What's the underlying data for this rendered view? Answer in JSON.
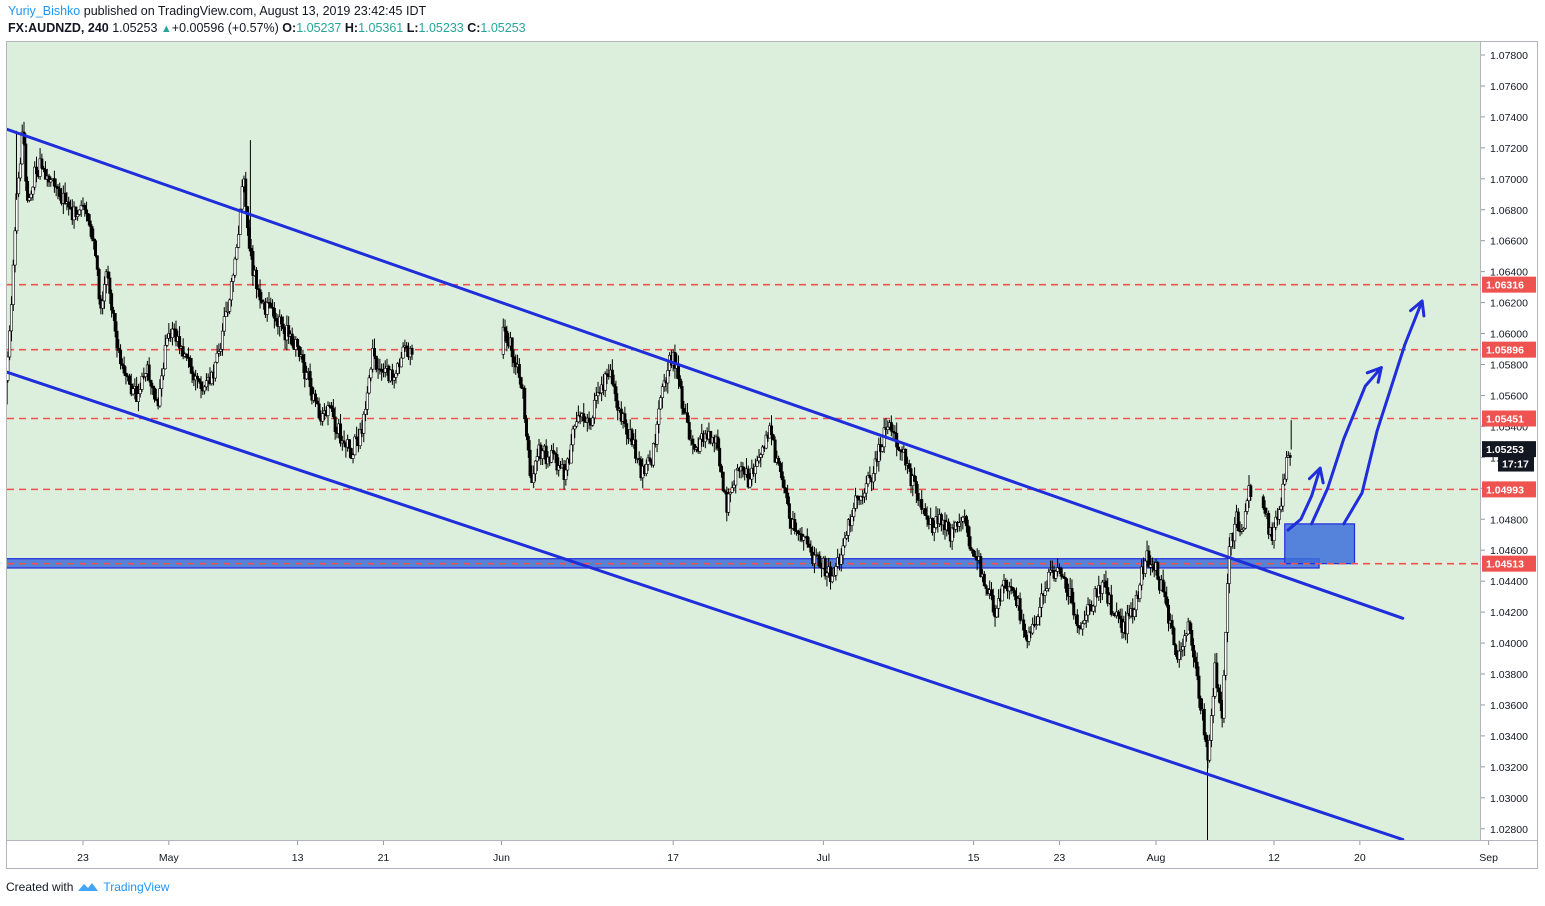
{
  "header": {
    "author": "Yuriy_Bishko",
    "published_text": "published on TradingView.com, August 13, 2019 23:42:45 IDT",
    "symbol": "FX:AUDNZD,",
    "interval": "240",
    "last": "1.05253",
    "change": "+0.00596 (+0.57%)",
    "o_label": "O:",
    "o_value": "1.05237",
    "h_label": "H:",
    "h_value": "1.05361",
    "l_label": "L:",
    "l_value": "1.05233",
    "c_label": "C:",
    "c_value": "1.05253"
  },
  "footer": {
    "created_with": "Created with",
    "brand": "TradingView"
  },
  "colors": {
    "background": "#dcefdc",
    "channel": "#1f2ddb",
    "level_dashed": "#ef5350",
    "zone_fill": "#3d6ed9",
    "price_tag_red": "#ef5350",
    "price_tag_dark": "#131722"
  },
  "chart_data": {
    "type": "candlestick",
    "symbol": "FX:AUDNZD",
    "timeframe": "240",
    "ylim": [
      1.027,
      1.0788
    ],
    "y_ticks": [
      "1.07800",
      "1.07600",
      "1.07400",
      "1.07200",
      "1.07000",
      "1.06800",
      "1.06600",
      "1.06400",
      "1.06200",
      "1.06000",
      "1.05800",
      "1.05600",
      "1.05400",
      "1.05200",
      "1.05000",
      "1.04800",
      "1.04600",
      "1.04400",
      "1.04200",
      "1.04000",
      "1.03800",
      "1.03600",
      "1.03400",
      "1.03200",
      "1.03000",
      "1.02800"
    ],
    "x_ticks": [
      {
        "label": "23",
        "day": 0
      },
      {
        "label": "May",
        "day": 8
      },
      {
        "label": "13",
        "day": 20
      },
      {
        "label": "21",
        "day": 28
      },
      {
        "label": "Jun",
        "day": 39
      },
      {
        "label": "17",
        "day": 55
      },
      {
        "label": "Jul",
        "day": 69
      },
      {
        "label": "15",
        "day": 83
      },
      {
        "label": "23",
        "day": 91
      },
      {
        "label": "Aug",
        "day": 100
      },
      {
        "label": "12",
        "day": 111
      },
      {
        "label": "20",
        "day": 119
      },
      {
        "label": "Sep",
        "day": 131
      }
    ],
    "price_path": [
      [
        -7.5,
        1.0546
      ],
      [
        -7.1,
        1.0575
      ],
      [
        -6.6,
        1.0632
      ],
      [
        -6.1,
        1.07
      ],
      [
        -5.6,
        1.0728
      ],
      [
        -5.1,
        1.0678
      ],
      [
        -4.6,
        1.07
      ],
      [
        -4.0,
        1.071
      ],
      [
        -3.0,
        1.07
      ],
      [
        -2.0,
        1.069
      ],
      [
        -1.0,
        1.0675
      ],
      [
        0,
        1.068
      ],
      [
        1,
        1.066
      ],
      [
        1.6,
        1.062
      ],
      [
        2.3,
        1.064
      ],
      [
        3,
        1.06
      ],
      [
        4,
        1.057
      ],
      [
        5,
        1.056
      ],
      [
        6,
        1.058
      ],
      [
        7,
        1.0555
      ],
      [
        8,
        1.0605
      ],
      [
        9,
        1.0595
      ],
      [
        10,
        1.058
      ],
      [
        11,
        1.056
      ],
      [
        12,
        1.057
      ],
      [
        13,
        1.06
      ],
      [
        14,
        1.064
      ],
      [
        15,
        1.07
      ],
      [
        15.6,
        1.065
      ],
      [
        16.5,
        1.062
      ],
      [
        18,
        1.061
      ],
      [
        19,
        1.06
      ],
      [
        20,
        1.059
      ],
      [
        21,
        1.057
      ],
      [
        22,
        1.0545
      ],
      [
        23,
        1.055
      ],
      [
        24,
        1.0535
      ],
      [
        25,
        1.0525
      ],
      [
        26,
        1.0535
      ],
      [
        27,
        1.0585
      ],
      [
        28,
        1.0575
      ],
      [
        29,
        1.057
      ],
      [
        30,
        1.059
      ],
      [
        31,
        1.058
      ],
      [
        32,
        1.057
      ],
      [
        33,
        1.056
      ],
      [
        34,
        1.0575
      ],
      [
        35,
        1.0585
      ],
      [
        36,
        1.0625
      ],
      [
        37,
        1.0632
      ],
      [
        38,
        1.062
      ],
      [
        39,
        1.061
      ],
      [
        40,
        1.059
      ],
      [
        41,
        1.056
      ],
      [
        41.8,
        1.05
      ],
      [
        42.5,
        1.0525
      ],
      [
        43.5,
        1.052
      ],
      [
        45,
        1.051
      ],
      [
        46,
        1.0545
      ],
      [
        47,
        1.054
      ],
      [
        48,
        1.056
      ],
      [
        49,
        1.0575
      ],
      [
        50,
        1.055
      ],
      [
        51,
        1.0535
      ],
      [
        52,
        1.051
      ],
      [
        53,
        1.052
      ],
      [
        54,
        1.056
      ],
      [
        55,
        1.059
      ],
      [
        56,
        1.055
      ],
      [
        57,
        1.0525
      ],
      [
        58,
        1.0535
      ],
      [
        59,
        1.053
      ],
      [
        60,
        1.049
      ],
      [
        61,
        1.0515
      ],
      [
        62,
        1.0505
      ],
      [
        63,
        1.052
      ],
      [
        64,
        1.0535
      ],
      [
        65,
        1.051
      ],
      [
        66,
        1.048
      ],
      [
        67,
        1.047
      ],
      [
        68,
        1.0455
      ],
      [
        69,
        1.045
      ],
      [
        70,
        1.044
      ],
      [
        71,
        1.047
      ],
      [
        72,
        1.049
      ],
      [
        73,
        1.05
      ],
      [
        74,
        1.052
      ],
      [
        75,
        1.0545
      ],
      [
        76,
        1.053
      ],
      [
        77,
        1.051
      ],
      [
        78,
        1.049
      ],
      [
        79,
        1.0475
      ],
      [
        80,
        1.048
      ],
      [
        81,
        1.047
      ],
      [
        82,
        1.048
      ],
      [
        83,
        1.046
      ],
      [
        84,
        1.044
      ],
      [
        85,
        1.042
      ],
      [
        86,
        1.044
      ],
      [
        87,
        1.043
      ],
      [
        88,
        1.04
      ],
      [
        89,
        1.042
      ],
      [
        90,
        1.044
      ],
      [
        91,
        1.045
      ],
      [
        92,
        1.043
      ],
      [
        93,
        1.041
      ],
      [
        94,
        1.0425
      ],
      [
        95,
        1.044
      ],
      [
        96,
        1.042
      ],
      [
        97,
        1.041
      ],
      [
        98,
        1.042
      ],
      [
        99,
        1.0455
      ],
      [
        100,
        1.045
      ],
      [
        101,
        1.042
      ],
      [
        102,
        1.039
      ],
      [
        103,
        1.041
      ],
      [
        104,
        1.037
      ],
      [
        104.8,
        1.0325
      ],
      [
        105.5,
        1.0385
      ],
      [
        106.2,
        1.035
      ],
      [
        106.8,
        1.046
      ],
      [
        107.5,
        1.048
      ],
      [
        108,
        1.047
      ],
      [
        108.7,
        1.05
      ],
      [
        109.5,
        1.049
      ],
      [
        110.2,
        1.048
      ],
      [
        111,
        1.047
      ],
      [
        111.6,
        1.049
      ],
      [
        112.2,
        1.052
      ],
      [
        112.6,
        1.0525
      ]
    ],
    "price_levels": [
      {
        "label": "1.06316",
        "value": 1.06316,
        "style": "dashed-red"
      },
      {
        "label": "1.05896",
        "value": 1.05896,
        "style": "dashed-red"
      },
      {
        "label": "1.05451",
        "value": 1.05451,
        "style": "dashed-red"
      },
      {
        "label": "1.05253",
        "value": 1.05253,
        "style": "last-price"
      },
      {
        "label": "17:17",
        "value": 1.0516,
        "style": "countdown"
      },
      {
        "label": "1.04993",
        "value": 1.04993,
        "style": "dashed-red"
      },
      {
        "label": "1.04513",
        "value": 1.04513,
        "style": "dashed-red"
      }
    ],
    "trendlines": [
      {
        "name": "channel-upper",
        "from": [
          -7.5,
          1.0733
        ],
        "to": [
          123,
          1.0416
        ]
      },
      {
        "name": "channel-lower",
        "from": [
          -7.5,
          1.0576
        ],
        "to": [
          123,
          1.0273
        ]
      }
    ],
    "zones": [
      {
        "name": "support-band",
        "x0": -7.5,
        "x1": 115.2,
        "y0": 1.04485,
        "y1": 1.04545
      },
      {
        "name": "buy-zone",
        "x0": 112.0,
        "x1": 118.5,
        "y0": 1.04513,
        "y1": 1.0477
      }
    ],
    "arrows": [
      {
        "name": "arrow-small",
        "points": [
          [
            112.3,
            1.0473
          ],
          [
            113.5,
            1.048
          ],
          [
            114.5,
            1.0495
          ],
          [
            115.3,
            1.0513
          ]
        ]
      },
      {
        "name": "arrow-medium",
        "points": [
          [
            114.5,
            1.0477
          ],
          [
            116,
            1.05
          ],
          [
            117.5,
            1.0532
          ],
          [
            119.5,
            1.0566
          ],
          [
            121,
            1.0578
          ]
        ]
      },
      {
        "name": "arrow-large",
        "points": [
          [
            117.5,
            1.0477
          ],
          [
            119.2,
            1.0497
          ],
          [
            120.6,
            1.0537
          ],
          [
            123.2,
            1.0593
          ],
          [
            124.8,
            1.0621
          ]
        ]
      }
    ],
    "grid": false
  }
}
